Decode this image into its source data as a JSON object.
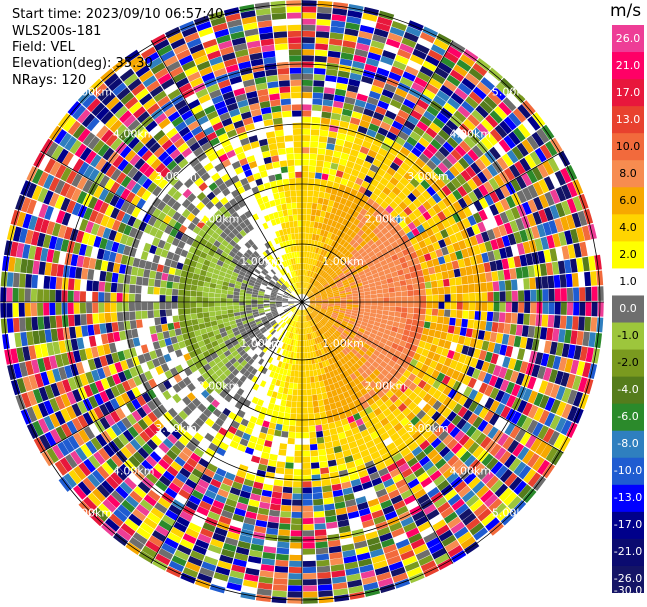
{
  "info": {
    "start_time": "Start time: 2023/09/10 06:57:40",
    "instrument": "WLS200s-181",
    "field": "Field: VEL",
    "elevation": "Elevation(deg): 35.30",
    "nrays": "NRays: 120"
  },
  "colorbar": {
    "unit": "m/s",
    "ticks": [
      "26.0",
      "21.0",
      "17.0",
      "13.0",
      "10.0",
      "8.0",
      "6.0",
      "4.0",
      "2.0",
      "1.0",
      "0.0",
      "-1.0",
      "-2.0",
      "-4.0",
      "-6.0",
      "-8.0",
      "-10.0",
      "-13.0",
      "-17.0",
      "-21.0",
      "-26.0",
      "-30.0"
    ],
    "colors": [
      "#ee3d96",
      "#ff0066",
      "#e8173c",
      "#e8412e",
      "#f26a3c",
      "#f78c50",
      "#f7a800",
      "#ffd400",
      "#ffff00",
      "#ffffff",
      "#6e6e6e",
      "#9dc63c",
      "#7a9a1f",
      "#557c1c",
      "#2b8a2b",
      "#2f7fbf",
      "#1f5cd1",
      "#0000ff",
      "#00008b",
      "#0b0b70",
      "#141466"
    ]
  },
  "chart_data": {
    "type": "ppi",
    "field": "VEL",
    "units": "m/s",
    "elevation_deg": 35.3,
    "n_rays": 120,
    "color_scale_min": -30.0,
    "color_scale_max": 26.0,
    "range_ring_labels": [
      "1.00km",
      "2.00km",
      "3.00km",
      "4.00km",
      "5.00km"
    ]
  }
}
